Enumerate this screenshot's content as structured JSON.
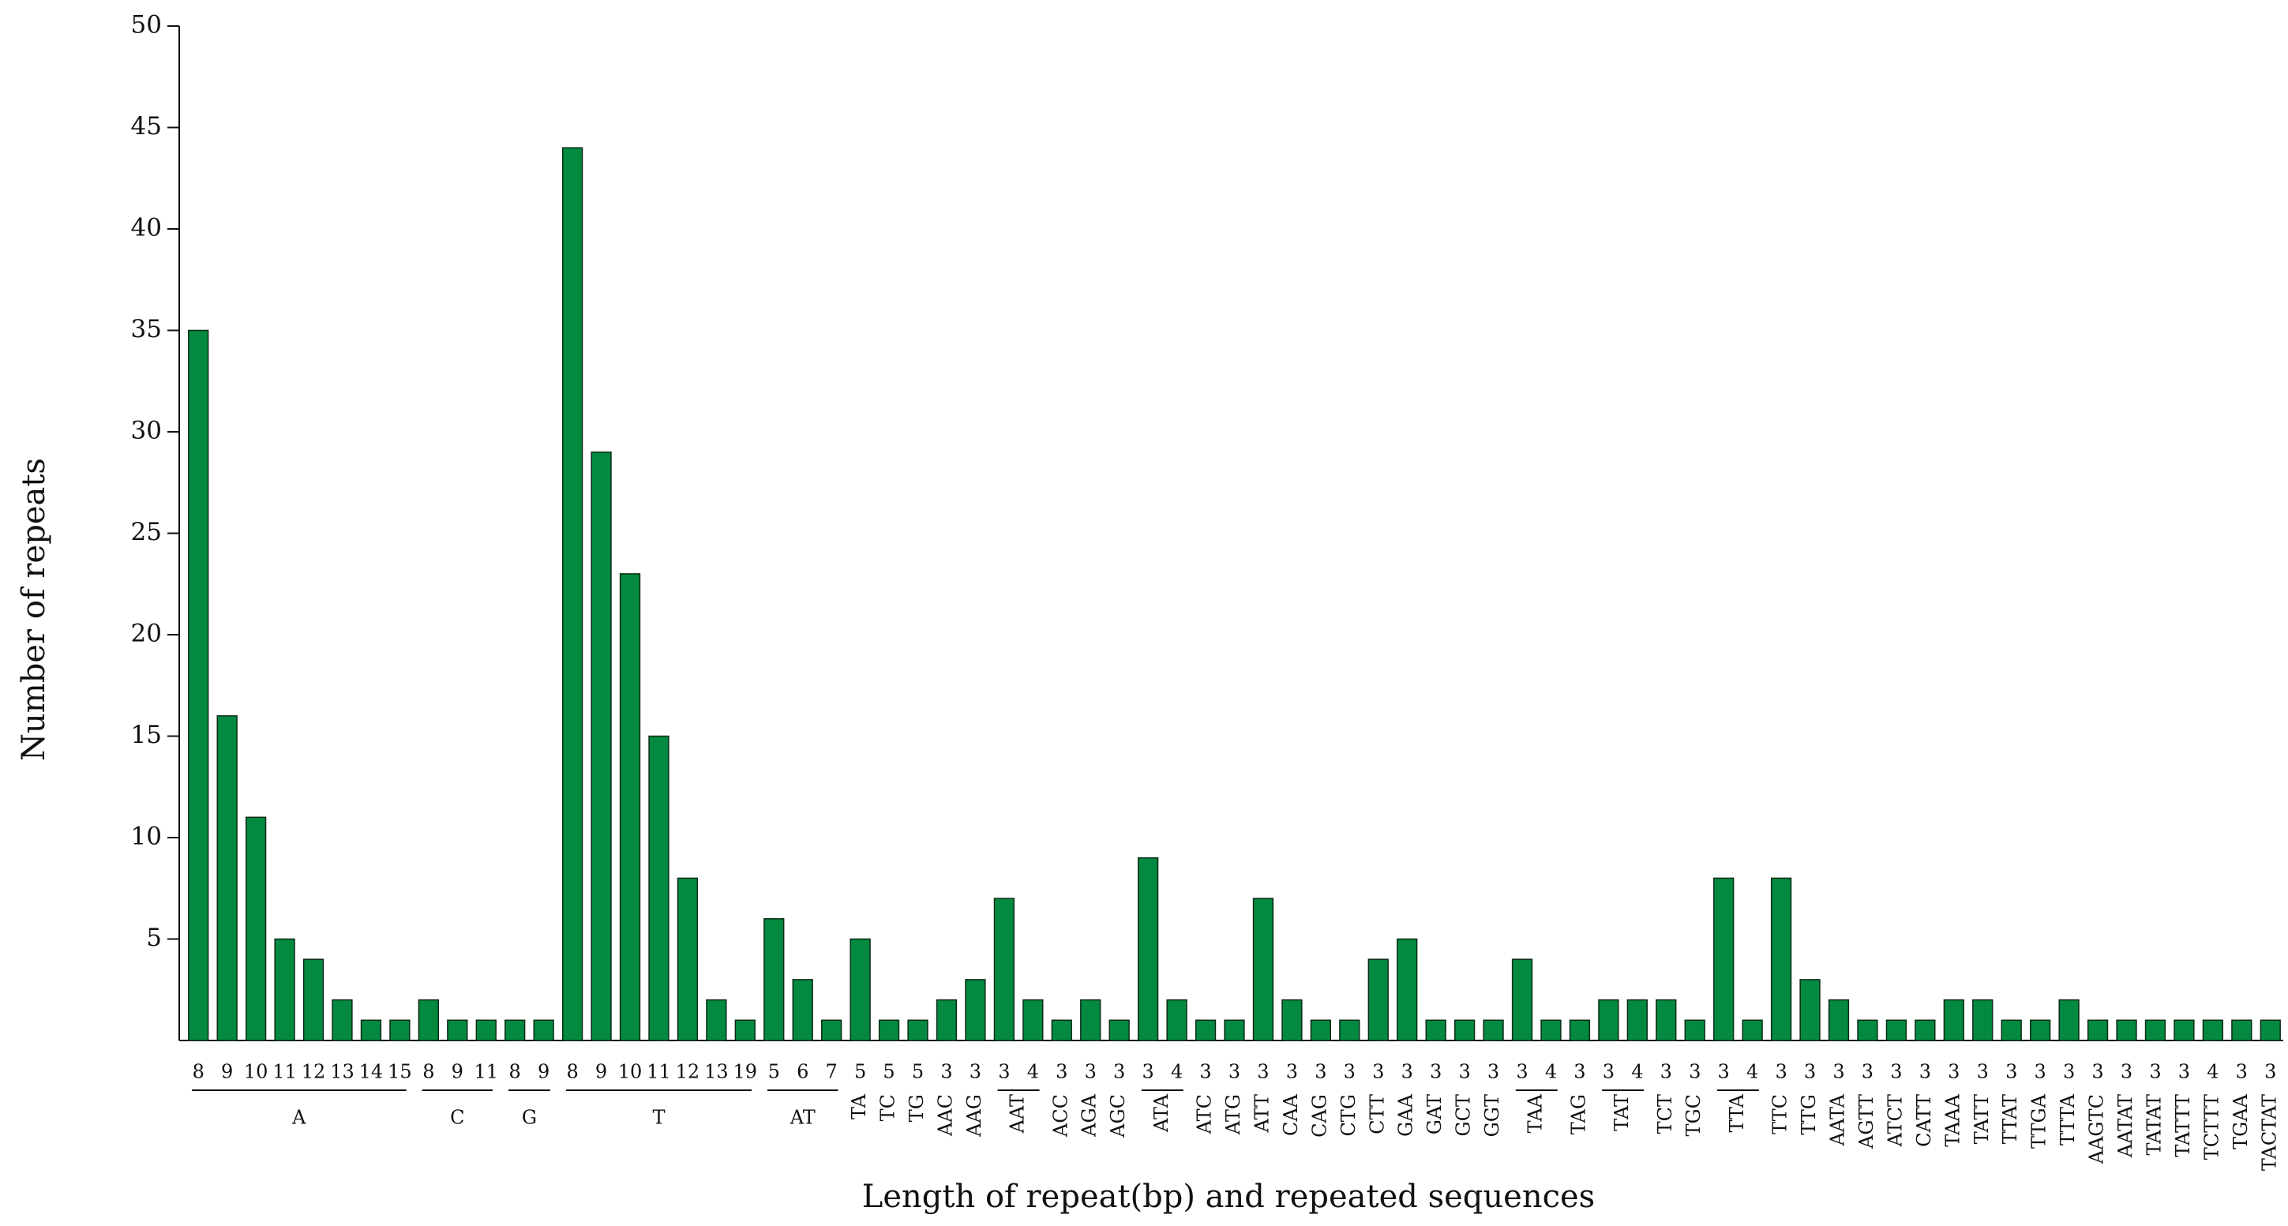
{
  "chart_data": {
    "type": "bar",
    "x_label": "Length of repeat(bp) and repeated sequences",
    "y_label": "Number of repeats",
    "color": "#038a40",
    "ylim": [
      0,
      50
    ],
    "yticks": [
      5,
      10,
      15,
      20,
      25,
      30,
      35,
      40,
      45,
      50
    ],
    "grid": false,
    "groups": [
      {
        "label": "A",
        "categories": [
          "8",
          "9",
          "10",
          "11",
          "12",
          "13",
          "14",
          "15"
        ],
        "values": [
          35,
          16,
          11,
          5,
          4,
          2,
          1,
          1
        ]
      },
      {
        "label": "C",
        "categories": [
          "8",
          "9",
          "11"
        ],
        "values": [
          2,
          1,
          1
        ]
      },
      {
        "label": "G",
        "categories": [
          "8",
          "9"
        ],
        "values": [
          1,
          1
        ]
      },
      {
        "label": "T",
        "categories": [
          "8",
          "9",
          "10",
          "11",
          "12",
          "13",
          "19"
        ],
        "values": [
          44,
          29,
          23,
          15,
          8,
          2,
          1
        ]
      },
      {
        "label": "AT",
        "categories": [
          "5",
          "6",
          "7"
        ],
        "values": [
          6,
          3,
          1
        ]
      },
      {
        "label": "TA",
        "categories": [
          "5"
        ],
        "values": [
          5
        ]
      },
      {
        "label": "TC",
        "categories": [
          "5"
        ],
        "values": [
          1
        ]
      },
      {
        "label": "TG",
        "categories": [
          "5"
        ],
        "values": [
          1
        ]
      },
      {
        "label": "AAC",
        "categories": [
          "3"
        ],
        "values": [
          2
        ]
      },
      {
        "label": "AAG",
        "categories": [
          "3"
        ],
        "values": [
          3
        ]
      },
      {
        "label": "AAT",
        "categories": [
          "3",
          "4"
        ],
        "values": [
          7,
          2
        ]
      },
      {
        "label": "ACC",
        "categories": [
          "3"
        ],
        "values": [
          1
        ]
      },
      {
        "label": "AGA",
        "categories": [
          "3"
        ],
        "values": [
          2
        ]
      },
      {
        "label": "AGC",
        "categories": [
          "3"
        ],
        "values": [
          1
        ]
      },
      {
        "label": "ATA",
        "categories": [
          "3",
          "4"
        ],
        "values": [
          9,
          2
        ]
      },
      {
        "label": "ATC",
        "categories": [
          "3"
        ],
        "values": [
          1
        ]
      },
      {
        "label": "ATG",
        "categories": [
          "3"
        ],
        "values": [
          1
        ]
      },
      {
        "label": "ATT",
        "categories": [
          "3"
        ],
        "values": [
          7
        ]
      },
      {
        "label": "CAA",
        "categories": [
          "3"
        ],
        "values": [
          2
        ]
      },
      {
        "label": "CAG",
        "categories": [
          "3"
        ],
        "values": [
          1
        ]
      },
      {
        "label": "CTG",
        "categories": [
          "3"
        ],
        "values": [
          1
        ]
      },
      {
        "label": "CTT",
        "categories": [
          "3"
        ],
        "values": [
          4
        ]
      },
      {
        "label": "GAA",
        "categories": [
          "3"
        ],
        "values": [
          5
        ]
      },
      {
        "label": "GAT",
        "categories": [
          "3"
        ],
        "values": [
          1
        ]
      },
      {
        "label": "GCT",
        "categories": [
          "3"
        ],
        "values": [
          1
        ]
      },
      {
        "label": "GGT",
        "categories": [
          "3"
        ],
        "values": [
          1
        ]
      },
      {
        "label": "TAA",
        "categories": [
          "3",
          "4"
        ],
        "values": [
          4,
          1
        ]
      },
      {
        "label": "TAG",
        "categories": [
          "3"
        ],
        "values": [
          1
        ]
      },
      {
        "label": "TAT",
        "categories": [
          "3",
          "4"
        ],
        "values": [
          2,
          2
        ]
      },
      {
        "label": "TCT",
        "categories": [
          "3"
        ],
        "values": [
          2
        ]
      },
      {
        "label": "TGC",
        "categories": [
          "3"
        ],
        "values": [
          1
        ]
      },
      {
        "label": "TTA",
        "categories": [
          "3",
          "4"
        ],
        "values": [
          8,
          1
        ]
      },
      {
        "label": "TTC",
        "categories": [
          "3"
        ],
        "values": [
          8
        ]
      },
      {
        "label": "TTG",
        "categories": [
          "3"
        ],
        "values": [
          3
        ]
      },
      {
        "label": "AATA",
        "categories": [
          "3"
        ],
        "values": [
          2
        ]
      },
      {
        "label": "AGTT",
        "categories": [
          "3"
        ],
        "values": [
          1
        ]
      },
      {
        "label": "ATCT",
        "categories": [
          "3"
        ],
        "values": [
          1
        ]
      },
      {
        "label": "CATT",
        "categories": [
          "3"
        ],
        "values": [
          1
        ]
      },
      {
        "label": "TAAA",
        "categories": [
          "3"
        ],
        "values": [
          2
        ]
      },
      {
        "label": "TATT",
        "categories": [
          "3"
        ],
        "values": [
          2
        ]
      },
      {
        "label": "TTAT",
        "categories": [
          "3"
        ],
        "values": [
          1
        ]
      },
      {
        "label": "TTGA",
        "categories": [
          "3"
        ],
        "values": [
          1
        ]
      },
      {
        "label": "TTTA",
        "categories": [
          "3"
        ],
        "values": [
          2
        ]
      },
      {
        "label": "AAGTC",
        "categories": [
          "3"
        ],
        "values": [
          1
        ]
      },
      {
        "label": "AATAT",
        "categories": [
          "3"
        ],
        "values": [
          1
        ]
      },
      {
        "label": "TATAT",
        "categories": [
          "3"
        ],
        "values": [
          1
        ]
      },
      {
        "label": "TATTT",
        "categories": [
          "3"
        ],
        "values": [
          1
        ]
      },
      {
        "label": "TCTTT",
        "categories": [
          "4"
        ],
        "values": [
          1
        ]
      },
      {
        "label": "TGAA",
        "categories": [
          "3"
        ],
        "values": [
          1
        ]
      },
      {
        "label": "TACTAT",
        "categories": [
          "3"
        ],
        "values": [
          1
        ]
      }
    ]
  }
}
